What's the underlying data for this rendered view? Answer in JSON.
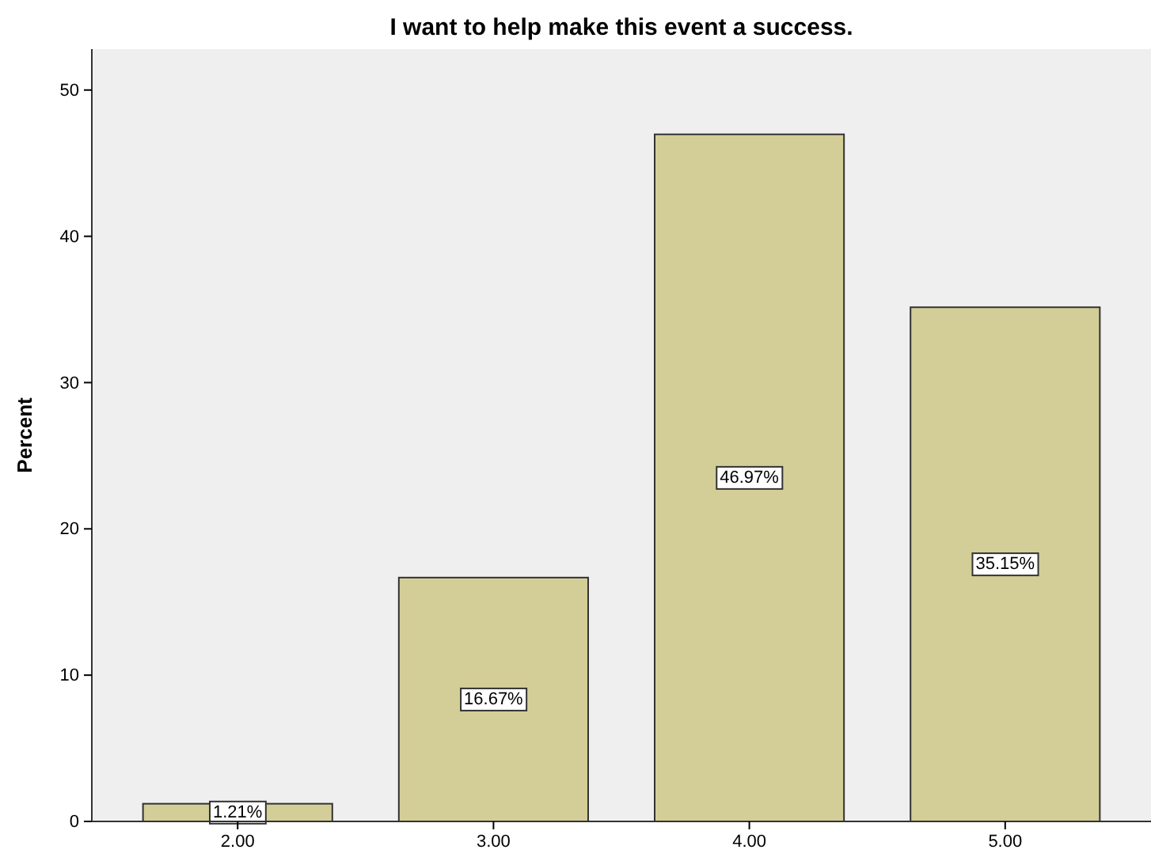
{
  "chart_data": {
    "type": "bar",
    "title": "I want to help make this event a success.",
    "ylabel": "Percent",
    "categories": [
      "2.00",
      "3.00",
      "4.00",
      "5.00"
    ],
    "values": [
      1.21,
      16.67,
      46.97,
      35.15
    ],
    "value_labels": [
      "1.21%",
      "16.67%",
      "46.97%",
      "35.15%"
    ],
    "color": "#d3ce97",
    "ylim": [
      0,
      52.8
    ],
    "yticks": [
      0,
      10,
      20,
      30,
      40,
      50
    ]
  }
}
